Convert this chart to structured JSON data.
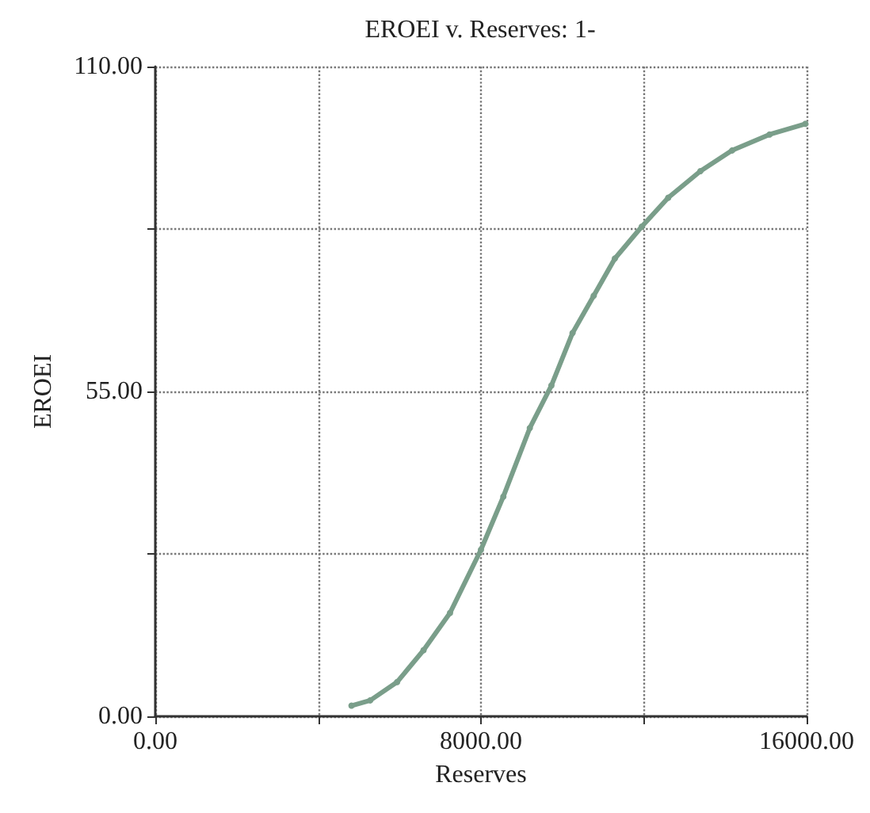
{
  "chart_data": {
    "type": "line",
    "title": "EROEI v. Reserves: 1-",
    "xlabel": "Reserves",
    "ylabel": "EROEI",
    "series": [
      {
        "color": "#7a9e8a",
        "x": [
          4820,
          5280,
          5940,
          6590,
          7240,
          8000,
          8550,
          9200,
          9730,
          10250,
          10770,
          11290,
          11950,
          12600,
          13390,
          14170,
          15090,
          15970
        ],
        "values": [
          1.8,
          2.7,
          5.8,
          11.2,
          17.5,
          28.2,
          37.2,
          48.8,
          56.0,
          64.9,
          71.2,
          77.5,
          82.9,
          87.8,
          92.3,
          95.8,
          98.5,
          100.3
        ]
      }
    ],
    "xlim": [
      0,
      16000
    ],
    "xticks": [
      {
        "value": 0,
        "label": "0.00"
      },
      {
        "value": 4000,
        "label": null
      },
      {
        "value": 8000,
        "label": "8000.00"
      },
      {
        "value": 12000,
        "label": null
      },
      {
        "value": 16000,
        "label": "16000.00"
      }
    ],
    "ylim": [
      0,
      110
    ],
    "yticks": [
      {
        "value": 0,
        "label": "0.00"
      },
      {
        "value": 27.5,
        "label": null
      },
      {
        "value": 55,
        "label": "55.00"
      },
      {
        "value": 82.5,
        "label": null
      },
      {
        "value": 110,
        "label": "110.00"
      }
    ],
    "grid": true,
    "marker": "circle",
    "line_style": "solid"
  }
}
